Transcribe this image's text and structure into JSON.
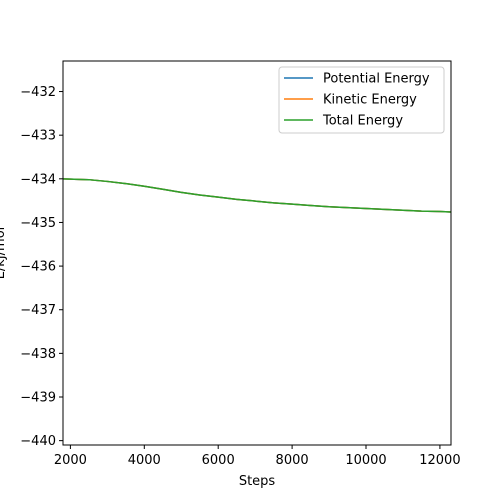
{
  "chart_data": {
    "type": "line",
    "xlabel": "Steps",
    "ylabel": "E/kJ/mol",
    "xlim": [
      1800,
      12300
    ],
    "ylim": [
      -440.1,
      -431.3
    ],
    "xticks": [
      2000,
      4000,
      6000,
      8000,
      10000,
      12000
    ],
    "yticks": [
      -432,
      -433,
      -434,
      -435,
      -436,
      -437,
      -438,
      -439,
      -440
    ],
    "legend_position": "top-right",
    "grid": false,
    "series": [
      {
        "name": "Potential Energy",
        "color": "#1f77b4",
        "x": [
          1800,
          2500,
          3000,
          3500,
          4000,
          4500,
          5000,
          5500,
          6000,
          6500,
          7000,
          7500,
          8000,
          8500,
          9000,
          9500,
          10000,
          10500,
          11000,
          11500,
          12000,
          12300
        ],
        "y": [
          -434.0,
          -434.02,
          -434.06,
          -434.11,
          -434.17,
          -434.24,
          -434.31,
          -434.37,
          -434.42,
          -434.47,
          -434.51,
          -434.55,
          -434.58,
          -434.61,
          -434.64,
          -434.66,
          -434.68,
          -434.7,
          -434.72,
          -434.74,
          -434.75,
          -434.76
        ]
      },
      {
        "name": "Kinetic Energy",
        "color": "#ff7f0e",
        "x": [
          1800,
          2500,
          3000,
          3500,
          4000,
          4500,
          5000,
          5500,
          6000,
          6500,
          7000,
          7500,
          8000,
          8500,
          9000,
          9500,
          10000,
          10500,
          11000,
          11500,
          12000,
          12300
        ],
        "y": [
          -434.0,
          -434.02,
          -434.06,
          -434.11,
          -434.17,
          -434.24,
          -434.31,
          -434.37,
          -434.42,
          -434.47,
          -434.51,
          -434.55,
          -434.58,
          -434.61,
          -434.64,
          -434.66,
          -434.68,
          -434.7,
          -434.72,
          -434.74,
          -434.75,
          -434.76
        ]
      },
      {
        "name": "Total Energy",
        "color": "#2ca02c",
        "x": [
          1800,
          2500,
          3000,
          3500,
          4000,
          4500,
          5000,
          5500,
          6000,
          6500,
          7000,
          7500,
          8000,
          8500,
          9000,
          9500,
          10000,
          10500,
          11000,
          11500,
          12000,
          12300
        ],
        "y": [
          -434.0,
          -434.02,
          -434.06,
          -434.11,
          -434.17,
          -434.24,
          -434.31,
          -434.37,
          -434.42,
          -434.47,
          -434.51,
          -434.55,
          -434.58,
          -434.61,
          -434.64,
          -434.66,
          -434.68,
          -434.7,
          -434.72,
          -434.74,
          -434.75,
          -434.76
        ]
      }
    ]
  }
}
